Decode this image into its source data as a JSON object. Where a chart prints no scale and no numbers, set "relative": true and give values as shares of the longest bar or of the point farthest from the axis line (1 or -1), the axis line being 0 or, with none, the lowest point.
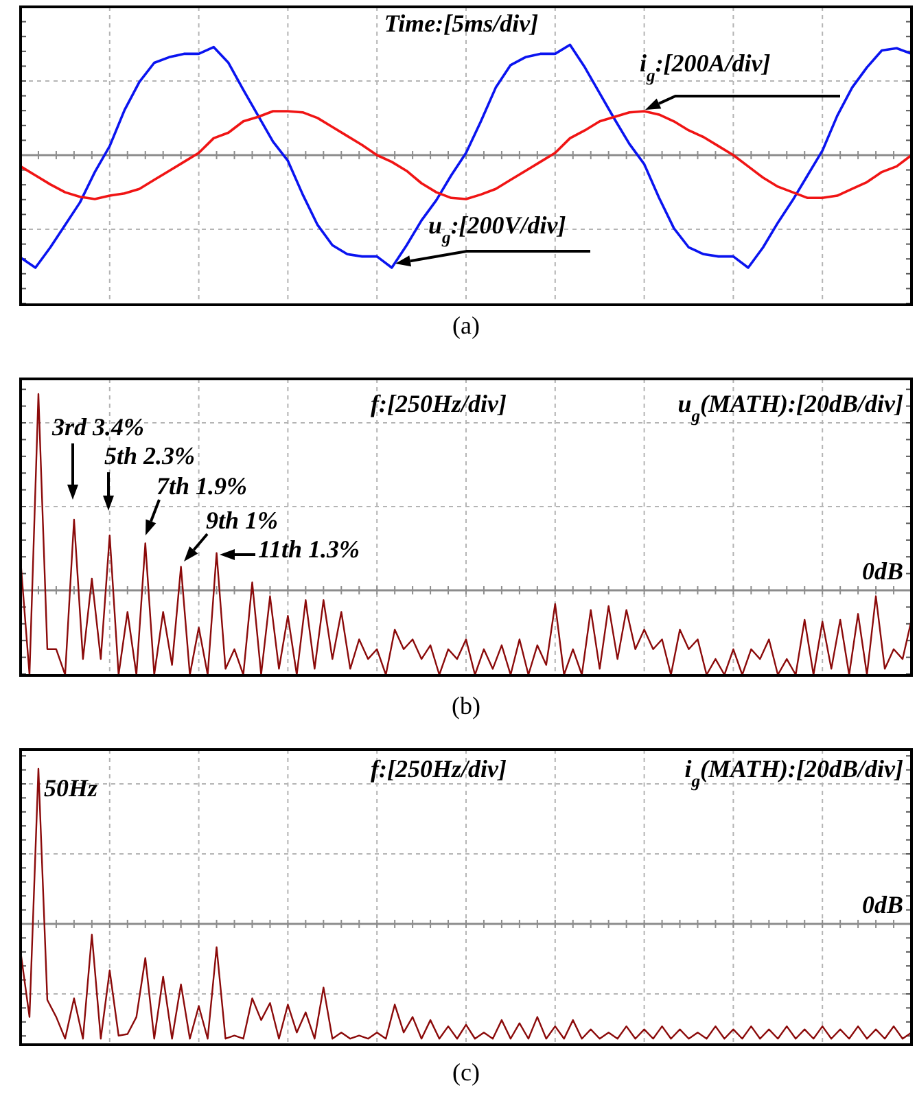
{
  "chart_data": [
    {
      "type": "line",
      "title": "(a)",
      "relative": true,
      "grid": true,
      "annotations": [
        "Time:[5ms/div]"
      ],
      "categories": [
        null,
        null,
        null,
        null,
        null,
        null,
        null,
        null,
        null,
        null,
        null,
        null,
        null,
        null,
        null,
        null,
        null,
        null,
        null,
        null,
        null,
        null,
        null,
        null,
        null,
        null,
        null,
        null,
        null,
        null,
        null,
        null,
        null,
        null,
        null,
        null,
        null,
        null,
        null,
        null,
        null,
        null,
        null,
        null,
        null,
        null,
        null,
        null,
        null,
        null,
        null,
        null,
        null,
        null,
        null,
        null,
        null,
        null,
        null,
        null,
        null
      ],
      "series": [
        {
          "name": "u$_{g}$:[200V/div]",
          "color": "#0a14f0",
          "values": [
            -0.91,
            -1.0,
            -0.82,
            -0.62,
            -0.42,
            -0.15,
            0.08,
            0.4,
            0.65,
            0.82,
            0.87,
            0.9,
            0.9,
            0.96,
            0.82,
            0.58,
            0.35,
            0.12,
            -0.05,
            -0.35,
            -0.62,
            -0.8,
            -0.88,
            -0.9,
            -0.9,
            -1.0,
            -0.8,
            -0.58,
            -0.4,
            -0.18,
            0.02,
            0.3,
            0.6,
            0.8,
            0.87,
            0.9,
            0.9,
            0.98,
            0.78,
            0.55,
            0.32,
            0.1,
            -0.08,
            -0.38,
            -0.65,
            -0.82,
            -0.88,
            -0.9,
            -0.9,
            -1.0,
            -0.82,
            -0.6,
            -0.4,
            -0.18,
            0.04,
            0.35,
            0.6,
            0.78,
            0.93,
            0.95,
            0.9
          ]
        },
        {
          "name": "i$_{g}$:[200A/div]",
          "color": "#f01414",
          "values": [
            -0.1,
            -0.18,
            -0.26,
            -0.33,
            -0.37,
            -0.39,
            -0.36,
            -0.34,
            -0.3,
            -0.22,
            -0.14,
            -0.06,
            0.02,
            0.15,
            0.2,
            0.3,
            0.34,
            0.39,
            0.39,
            0.38,
            0.33,
            0.25,
            0.17,
            0.09,
            0.0,
            -0.06,
            -0.14,
            -0.25,
            -0.33,
            -0.38,
            -0.39,
            -0.35,
            -0.3,
            -0.22,
            -0.14,
            -0.06,
            0.02,
            0.15,
            0.22,
            0.3,
            0.34,
            0.38,
            0.39,
            0.36,
            0.3,
            0.22,
            0.16,
            0.08,
            0.0,
            -0.1,
            -0.2,
            -0.28,
            -0.33,
            -0.38,
            -0.38,
            -0.36,
            -0.3,
            -0.24,
            -0.15,
            -0.1,
            0.0
          ]
        }
      ]
    },
    {
      "type": "line",
      "title": "(b)",
      "relative": true,
      "grid": true,
      "annotations": [
        "f:[250Hz/div]",
        "u$_{g}$(MATH):[20dB/div]",
        "3rd 3.4%",
        "5th 2.3%",
        "7th 1.9%",
        "9th 1%",
        "11th 1.3%"
      ],
      "ref_lines": [
        {
          "axis": "y",
          "value": 0,
          "label": "0dB"
        }
      ],
      "categories": [
        null,
        null,
        null,
        null,
        null,
        null,
        null,
        null,
        null,
        null,
        null,
        null,
        null,
        null,
        null,
        null,
        null,
        null,
        null,
        null,
        null,
        null,
        null,
        null,
        null,
        null,
        null,
        null,
        null,
        null,
        null,
        null,
        null,
        null,
        null,
        null,
        null,
        null,
        null,
        null,
        null,
        null,
        null,
        null,
        null,
        null,
        null,
        null,
        null,
        null,
        null,
        null,
        null,
        null,
        null,
        null,
        null,
        null,
        null,
        null,
        null,
        null,
        null,
        null,
        null,
        null,
        null,
        null,
        null,
        null,
        null,
        null,
        null,
        null,
        null,
        null,
        null,
        null,
        null,
        null,
        null,
        null,
        null,
        null,
        null,
        null,
        null,
        null,
        null,
        null,
        null,
        null,
        null,
        null,
        null,
        null,
        null,
        null,
        null,
        null,
        null
      ],
      "series": [
        {
          "color": "#8b0a0a",
          "values": [
            0.15,
            -0.43,
            1.0,
            -0.3,
            -0.3,
            -0.43,
            0.36,
            -0.35,
            0.06,
            -0.35,
            0.28,
            -0.43,
            -0.11,
            -0.43,
            0.24,
            -0.43,
            -0.11,
            -0.38,
            0.12,
            -0.43,
            -0.19,
            -0.43,
            0.19,
            -0.4,
            -0.3,
            -0.43,
            0.04,
            -0.43,
            -0.03,
            -0.4,
            -0.13,
            -0.43,
            -0.05,
            -0.4,
            -0.05,
            -0.35,
            -0.11,
            -0.4,
            -0.25,
            -0.35,
            -0.3,
            -0.43,
            -0.2,
            -0.3,
            -0.25,
            -0.35,
            -0.28,
            -0.43,
            -0.3,
            -0.35,
            -0.25,
            -0.43,
            -0.3,
            -0.4,
            -0.28,
            -0.43,
            -0.25,
            -0.43,
            -0.28,
            -0.38,
            -0.07,
            -0.43,
            -0.3,
            -0.43,
            -0.1,
            -0.4,
            -0.08,
            -0.35,
            -0.1,
            -0.3,
            -0.2,
            -0.3,
            -0.25,
            -0.43,
            -0.2,
            -0.3,
            -0.25,
            -0.43,
            -0.35,
            -0.43,
            -0.3,
            -0.43,
            -0.3,
            -0.35,
            -0.25,
            -0.43,
            -0.35,
            -0.43,
            -0.15,
            -0.43,
            -0.16,
            -0.4,
            -0.15,
            -0.43,
            -0.12,
            -0.43,
            -0.03,
            -0.4,
            -0.3,
            -0.35,
            -0.15
          ]
        }
      ]
    },
    {
      "type": "line",
      "title": "(c)",
      "relative": true,
      "grid": true,
      "annotations": [
        "f:[250Hz/div]",
        "i$_{g}$(MATH):[20dB/div]",
        "50Hz"
      ],
      "ref_lines": [
        {
          "axis": "y",
          "value": 0,
          "label": "0dB"
        }
      ],
      "categories": [
        null,
        null,
        null,
        null,
        null,
        null,
        null,
        null,
        null,
        null,
        null,
        null,
        null,
        null,
        null,
        null,
        null,
        null,
        null,
        null,
        null,
        null,
        null,
        null,
        null,
        null,
        null,
        null,
        null,
        null,
        null,
        null,
        null,
        null,
        null,
        null,
        null,
        null,
        null,
        null,
        null,
        null,
        null,
        null,
        null,
        null,
        null,
        null,
        null,
        null,
        null,
        null,
        null,
        null,
        null,
        null,
        null,
        null,
        null,
        null,
        null,
        null,
        null,
        null,
        null,
        null,
        null,
        null,
        null,
        null,
        null,
        null,
        null,
        null,
        null,
        null,
        null,
        null,
        null,
        null,
        null,
        null,
        null,
        null,
        null,
        null,
        null,
        null,
        null,
        null,
        null,
        null,
        null,
        null,
        null,
        null,
        null,
        null,
        null,
        null,
        null
      ],
      "series": [
        {
          "color": "#8b0a0a",
          "values": [
            -0.18,
            -0.6,
            1.0,
            -0.49,
            -0.6,
            -0.74,
            -0.48,
            -0.74,
            -0.07,
            -0.74,
            -0.3,
            -0.72,
            -0.71,
            -0.6,
            -0.22,
            -0.74,
            -0.34,
            -0.74,
            -0.39,
            -0.74,
            -0.53,
            -0.74,
            -0.15,
            -0.74,
            -0.72,
            -0.74,
            -0.48,
            -0.62,
            -0.51,
            -0.74,
            -0.52,
            -0.7,
            -0.57,
            -0.74,
            -0.41,
            -0.74,
            -0.7,
            -0.74,
            -0.72,
            -0.74,
            -0.7,
            -0.74,
            -0.52,
            -0.7,
            -0.6,
            -0.74,
            -0.62,
            -0.74,
            -0.66,
            -0.74,
            -0.65,
            -0.74,
            -0.7,
            -0.74,
            -0.62,
            -0.74,
            -0.64,
            -0.74,
            -0.6,
            -0.74,
            -0.66,
            -0.74,
            -0.62,
            -0.74,
            -0.68,
            -0.74,
            -0.7,
            -0.74,
            -0.66,
            -0.74,
            -0.68,
            -0.74,
            -0.66,
            -0.74,
            -0.68,
            -0.74,
            -0.7,
            -0.74,
            -0.66,
            -0.74,
            -0.68,
            -0.74,
            -0.66,
            -0.74,
            -0.68,
            -0.74,
            -0.66,
            -0.74,
            -0.68,
            -0.74,
            -0.66,
            -0.74,
            -0.68,
            -0.74,
            -0.66,
            -0.74,
            -0.68,
            -0.74,
            -0.66,
            -0.74,
            -0.7
          ]
        }
      ]
    }
  ]
}
